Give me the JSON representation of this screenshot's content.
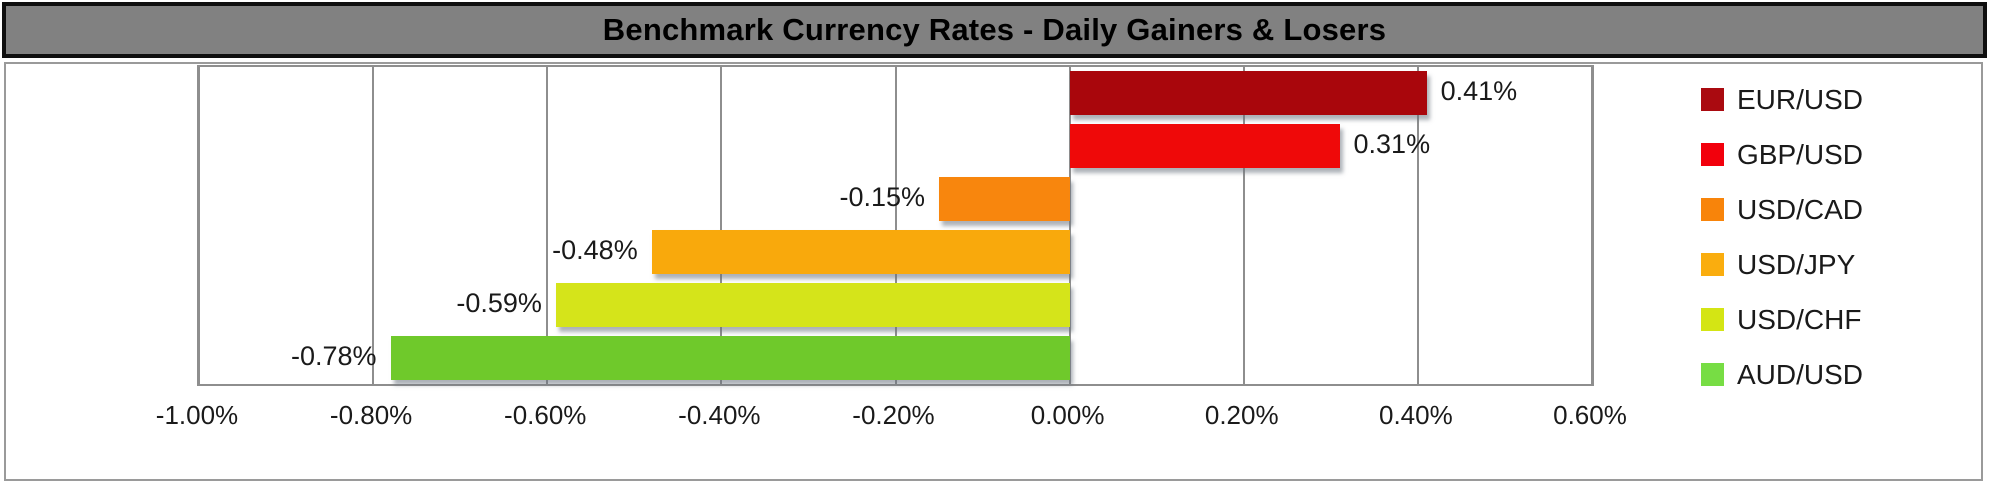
{
  "title": {
    "text": "Benchmark Currency Rates - Daily Gainers & Losers"
  },
  "colors": {
    "title_background": "#818181",
    "title_border": "#0f0f0f",
    "frame_border": "#9a9a9a",
    "gridline": "#8e8e8e",
    "text": "#1a1a1a"
  },
  "chart_data": {
    "type": "bar",
    "orientation": "horizontal",
    "title": "Benchmark Currency Rates - Daily Gainers & Losers",
    "categories": [
      "EUR/USD",
      "GBP/USD",
      "USD/CAD",
      "USD/JPY",
      "USD/CHF",
      "AUD/USD"
    ],
    "values": [
      0.41,
      0.31,
      -0.15,
      -0.48,
      -0.59,
      -0.78
    ],
    "data_labels": [
      "0.41%",
      "0.31%",
      "-0.15%",
      "-0.48%",
      "-0.59%",
      "-0.78%"
    ],
    "bar_colors": [
      "#a9060c",
      "#ef0909",
      "#f8860d",
      "#f9a90c",
      "#d5e41a",
      "#6fc92b"
    ],
    "xlabel": "",
    "ylabel": "",
    "xlim": [
      -1.0,
      0.6
    ],
    "x_ticks": [
      -1.0,
      -0.8,
      -0.6,
      -0.4,
      -0.2,
      0.0,
      0.2,
      0.4,
      0.6
    ],
    "x_tick_labels": [
      "-1.00%",
      "-0.80%",
      "-0.60%",
      "-0.40%",
      "-0.20%",
      "0.00%",
      "0.20%",
      "0.40%",
      "0.60%"
    ],
    "grid": true,
    "legend_position": "right"
  },
  "legend": {
    "items": [
      {
        "label": "EUR/USD",
        "color": "#aa0a10"
      },
      {
        "label": "GBP/USD",
        "color": "#f2000c"
      },
      {
        "label": "USD/CAD",
        "color": "#f8840a"
      },
      {
        "label": "USD/JPY",
        "color": "#faad0e"
      },
      {
        "label": "USD/CHF",
        "color": "#d4e514"
      },
      {
        "label": "AUD/USD",
        "color": "#77dd44"
      }
    ]
  }
}
